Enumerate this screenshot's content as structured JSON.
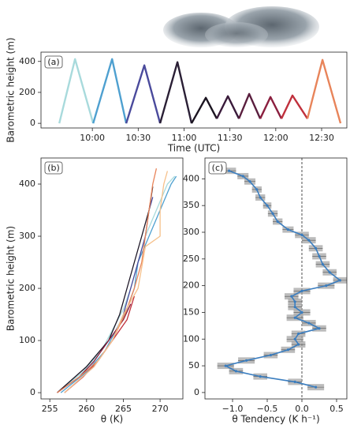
{
  "chart_data": [
    {
      "type": "line",
      "label": "(a)",
      "xlabel": "Time (UTC)",
      "ylabel": "Barometric height (m)",
      "xlim": [
        9.44,
        12.775
      ],
      "ylim": [
        -30,
        460
      ],
      "xticks": [
        {
          "value": 10,
          "label": "10:00"
        },
        {
          "value": 10.5,
          "label": "10:30"
        },
        {
          "value": 11,
          "label": "11:00"
        },
        {
          "value": 11.5,
          "label": "11:30"
        },
        {
          "value": 12,
          "label": "12:00"
        },
        {
          "value": 12.5,
          "label": "12:30"
        }
      ],
      "yticks": [
        0,
        200,
        400
      ],
      "series": [
        {
          "color": "#a8dadc",
          "x": [
            9.639,
            9.811,
            10.009
          ],
          "values": [
            0,
            415,
            0
          ]
        },
        {
          "color": "#4ea0d0",
          "x": [
            10.009,
            10.215,
            10.369
          ],
          "values": [
            0,
            415,
            0
          ]
        },
        {
          "color": "#4a4a9c",
          "x": [
            10.369,
            10.567,
            10.739
          ],
          "values": [
            0,
            375,
            0
          ]
        },
        {
          "color": "#2a1f35",
          "x": [
            10.739,
            10.928,
            11.082
          ],
          "values": [
            0,
            395,
            0
          ]
        },
        {
          "color": "#1b1420",
          "x": [
            11.082,
            11.237,
            11.357
          ],
          "values": [
            0,
            165,
            30
          ]
        },
        {
          "color": "#3a1b3b",
          "x": [
            11.357,
            11.478,
            11.598
          ],
          "values": [
            30,
            175,
            30
          ]
        },
        {
          "color": "#5a1e3e",
          "x": [
            11.598,
            11.71,
            11.83
          ],
          "values": [
            30,
            190,
            30
          ]
        },
        {
          "color": "#8b1f3f",
          "x": [
            11.83,
            11.942,
            12.062
          ],
          "values": [
            30,
            170,
            30
          ]
        },
        {
          "color": "#c0303c",
          "x": [
            12.062,
            12.182,
            12.345
          ],
          "values": [
            30,
            180,
            30
          ]
        },
        {
          "color": "#e8845a",
          "x": [
            12.345,
            12.509,
            12.706
          ],
          "values": [
            30,
            410,
            0
          ]
        }
      ]
    },
    {
      "type": "line",
      "label": "(b)",
      "xlabel": "θ (K)",
      "ylabel": "Barometric height (m)",
      "xlim": [
        253.8,
        273.1
      ],
      "ylim": [
        -12,
        450
      ],
      "xticks": [
        255,
        260,
        265,
        270
      ],
      "yticks": [
        0,
        100,
        200,
        300,
        400
      ],
      "series": [
        {
          "color": "#a8dadc",
          "x": [
            256,
            259.5,
            262,
            263.5,
            265,
            266,
            267,
            268,
            269.5,
            271,
            272
          ],
          "values": [
            0,
            40,
            80,
            120,
            160,
            200,
            250,
            300,
            350,
            400,
            415
          ]
        },
        {
          "color": "#4ea0d0",
          "x": [
            256.5,
            260,
            262.5,
            264,
            265.5,
            266.5,
            267,
            268.5,
            270,
            271.5,
            272.2
          ],
          "values": [
            0,
            40,
            80,
            120,
            160,
            200,
            250,
            300,
            350,
            400,
            415
          ]
        },
        {
          "color": "#4a4a9c",
          "x": [
            257,
            261,
            263.5,
            265,
            266,
            267,
            268,
            268.5,
            269
          ],
          "values": [
            0,
            50,
            100,
            150,
            200,
            250,
            300,
            350,
            375
          ]
        },
        {
          "color": "#1d1626",
          "x": [
            256,
            260,
            263,
            264.5,
            265.5,
            266.5,
            267.5,
            268.5,
            269
          ],
          "values": [
            0,
            50,
            100,
            150,
            200,
            250,
            300,
            350,
            395
          ]
        },
        {
          "color": "#8b1f3f",
          "x": [
            256,
            259,
            261,
            263,
            265,
            266
          ],
          "values": [
            0,
            30,
            60,
            100,
            140,
            170
          ]
        },
        {
          "color": "#c0303c",
          "x": [
            257,
            259.5,
            261.5,
            263.5,
            265.5,
            266.5
          ],
          "values": [
            0,
            30,
            60,
            100,
            140,
            185
          ]
        },
        {
          "color": "#e8845a",
          "x": [
            256,
            259,
            261.5,
            263.5,
            265.2,
            266.5,
            267.5,
            268,
            268.5,
            269,
            269.5
          ],
          "values": [
            0,
            30,
            60,
            100,
            150,
            200,
            250,
            300,
            350,
            400,
            430
          ]
        },
        {
          "color": "#f6c08a",
          "x": [
            257,
            261,
            263.5,
            265,
            267,
            268,
            270,
            270,
            270.5,
            271
          ],
          "values": [
            0,
            50,
            100,
            150,
            200,
            280,
            300,
            350,
            400,
            425
          ]
        }
      ]
    },
    {
      "type": "profile",
      "label": "(c)",
      "xlabel": "θ Tendency (K h⁻¹)",
      "xlim": [
        -1.398,
        0.648
      ],
      "ylim": [
        -12,
        439
      ],
      "xticks": [
        {
          "value": -1,
          "label": "−1.0"
        },
        {
          "value": -0.5,
          "label": "−0.5"
        },
        {
          "value": 0,
          "label": "0.0"
        },
        0.5
      ],
      "yticks": [
        0,
        50,
        100,
        150,
        200,
        250,
        300,
        350,
        400
      ],
      "reference_line": 0,
      "series": [
        {
          "color": "#3a7dbf",
          "band_color": "#a0a0a0",
          "x": [
            -1.05,
            -0.85,
            -0.75,
            -0.65,
            -0.6,
            -0.5,
            -0.42,
            -0.35,
            -0.2,
            0.0,
            0.1,
            0.2,
            0.25,
            0.3,
            0.4,
            0.55,
            0.35,
            0.0,
            -0.15,
            -0.1,
            -0.1,
            0.0,
            -0.1,
            0.1,
            0.25,
            -0.05,
            -0.1,
            -0.05,
            -0.2,
            -0.45,
            -0.8,
            -1.1,
            -0.95,
            -0.6,
            -0.1,
            0.2
          ],
          "values": [
            415,
            405,
            395,
            380,
            365,
            350,
            335,
            320,
            305,
            295,
            285,
            270,
            255,
            240,
            225,
            210,
            200,
            190,
            180,
            170,
            160,
            150,
            140,
            130,
            120,
            110,
            100,
            90,
            80,
            70,
            60,
            50,
            40,
            30,
            20,
            10
          ],
          "errors": [
            0.1,
            0.08,
            0.08,
            0.07,
            0.07,
            0.06,
            0.07,
            0.07,
            0.08,
            0.1,
            0.1,
            0.1,
            0.1,
            0.1,
            0.1,
            0.1,
            0.12,
            0.12,
            0.1,
            0.1,
            0.1,
            0.12,
            0.12,
            0.1,
            0.1,
            0.1,
            0.12,
            0.1,
            0.1,
            0.1,
            0.12,
            0.12,
            0.1,
            0.1,
            0.1,
            0.12
          ]
        }
      ]
    }
  ]
}
